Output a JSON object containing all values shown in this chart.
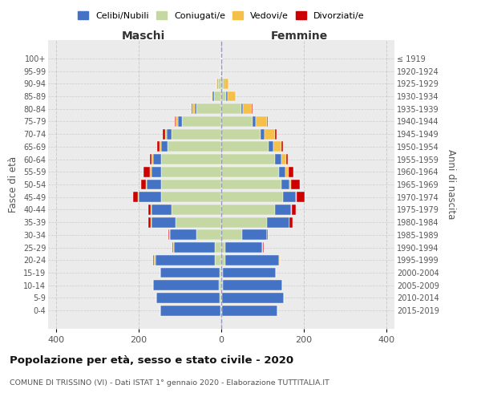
{
  "age_groups_bottom_to_top": [
    "0-4",
    "5-9",
    "10-14",
    "15-19",
    "20-24",
    "25-29",
    "30-34",
    "35-39",
    "40-44",
    "45-49",
    "50-54",
    "55-59",
    "60-64",
    "65-69",
    "70-74",
    "75-79",
    "80-84",
    "85-89",
    "90-94",
    "95-99",
    "100+"
  ],
  "birth_years_bottom_to_top": [
    "2015-2019",
    "2010-2014",
    "2005-2009",
    "2000-2004",
    "1995-1999",
    "1990-1994",
    "1985-1989",
    "1980-1984",
    "1975-1979",
    "1970-1974",
    "1965-1969",
    "1960-1964",
    "1955-1959",
    "1950-1954",
    "1945-1949",
    "1940-1944",
    "1935-1939",
    "1930-1934",
    "1925-1929",
    "1920-1924",
    "≤ 1919"
  ],
  "males": {
    "celibi": [
      145,
      155,
      160,
      145,
      145,
      100,
      65,
      60,
      50,
      55,
      35,
      25,
      20,
      15,
      12,
      10,
      5,
      3,
      2,
      0,
      0
    ],
    "coniugati": [
      2,
      3,
      5,
      3,
      15,
      15,
      60,
      110,
      120,
      145,
      145,
      145,
      145,
      130,
      120,
      95,
      60,
      18,
      8,
      2,
      0
    ],
    "vedovi": [
      0,
      0,
      0,
      0,
      3,
      2,
      2,
      1,
      1,
      2,
      3,
      3,
      4,
      5,
      5,
      5,
      5,
      3,
      2,
      0,
      0
    ],
    "divorziati": [
      0,
      0,
      0,
      0,
      2,
      2,
      2,
      5,
      5,
      12,
      12,
      15,
      5,
      5,
      5,
      2,
      2,
      0,
      0,
      0,
      0
    ]
  },
  "females": {
    "nubili": [
      135,
      150,
      145,
      130,
      130,
      90,
      60,
      55,
      40,
      30,
      20,
      15,
      15,
      12,
      10,
      8,
      5,
      3,
      2,
      0,
      0
    ],
    "coniugate": [
      2,
      2,
      3,
      3,
      10,
      10,
      50,
      110,
      130,
      150,
      145,
      140,
      130,
      115,
      95,
      75,
      48,
      12,
      5,
      2,
      0
    ],
    "vedove": [
      0,
      0,
      0,
      0,
      1,
      1,
      1,
      1,
      2,
      3,
      5,
      8,
      12,
      18,
      25,
      28,
      20,
      20,
      10,
      2,
      0
    ],
    "divorziate": [
      0,
      0,
      0,
      0,
      1,
      2,
      2,
      8,
      8,
      20,
      20,
      12,
      5,
      5,
      5,
      2,
      2,
      0,
      0,
      0,
      0
    ]
  },
  "colors": {
    "celibi": "#4472c4",
    "coniugati": "#c5d8a4",
    "vedovi": "#f5c04a",
    "divorziati": "#cc0000"
  },
  "xlim": 420,
  "title": "Popolazione per età, sesso e stato civile - 2020",
  "subtitle": "COMUNE DI TRISSINO (VI) - Dati ISTAT 1° gennaio 2020 - Elaborazione TUTTITALIA.IT",
  "xlabel_left": "Maschi",
  "xlabel_right": "Femmine",
  "ylabel_left": "Fasce di età",
  "ylabel_right": "Anni di nascita",
  "legend_labels": [
    "Celibi/Nubili",
    "Coniugati/e",
    "Vedovi/e",
    "Divorziati/e"
  ],
  "bg_color": "#ebebeb"
}
